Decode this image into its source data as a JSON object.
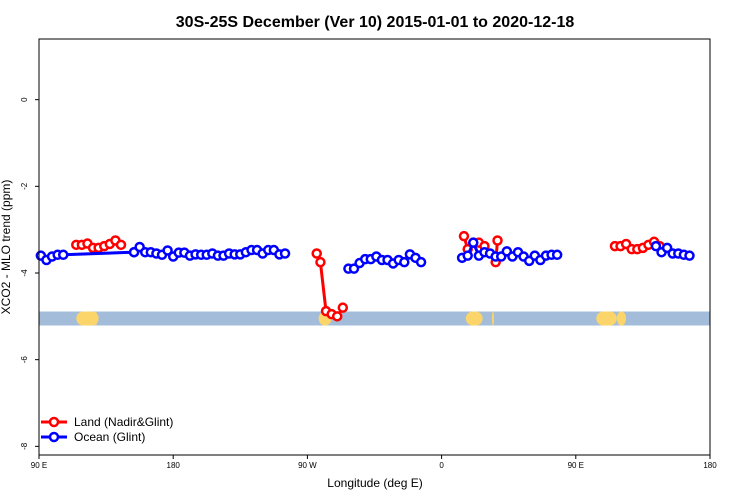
{
  "chart_data": {
    "type": "line",
    "title": "30S-25S December (Ver 10)   2015-01-01 to 2020-12-18",
    "xlabel": "Longitude (deg E)",
    "ylabel": "XCO2 - MLO trend (ppm)",
    "xlim": [
      90,
      450
    ],
    "ylim": [
      -8.2,
      1.4
    ],
    "x_ticks": [
      {
        "value": 90,
        "label": "90 E"
      },
      {
        "value": 162,
        "label": "180"
      },
      {
        "value": 234,
        "label": "90 W"
      },
      {
        "value": 306,
        "label": "0"
      },
      {
        "value": 378,
        "label": "90 E"
      },
      {
        "value": 450,
        "label": "180"
      }
    ],
    "y_ticks": [
      {
        "value": 0,
        "label": "0"
      },
      {
        "value": -2,
        "label": "-2"
      },
      {
        "value": -4,
        "label": "-4"
      },
      {
        "value": -6,
        "label": "-6"
      },
      {
        "value": -8,
        "label": "-8"
      }
    ],
    "land_ocean_bar": {
      "y": -5.05,
      "ocean_color": "#a3bcd9",
      "land_color": "#fcd56a",
      "land_spans": [
        [
          110,
          120
        ],
        [
          120,
          121
        ],
        [
          115,
          122
        ],
        [
          240,
          247
        ],
        [
          319,
          328
        ],
        [
          333,
          334
        ],
        [
          389,
          400
        ],
        [
          400,
          405
        ]
      ]
    },
    "series": [
      {
        "name": "Land (Nadir&Glint)",
        "color": "#ff0000",
        "segments": [
          [
            [
              110,
              -3.35
            ],
            [
              113,
              -3.35
            ],
            [
              116,
              -3.32
            ],
            [
              119,
              -3.42
            ],
            [
              122,
              -3.42
            ],
            [
              125,
              -3.38
            ],
            [
              128,
              -3.33
            ],
            [
              131,
              -3.25
            ],
            [
              134,
              -3.35
            ]
          ],
          [
            [
              239,
              -3.55
            ],
            [
              241,
              -3.75
            ],
            [
              244,
              -4.88
            ],
            [
              247,
              -4.95
            ],
            [
              250,
              -5.0
            ],
            [
              253,
              -4.8
            ]
          ],
          [
            [
              318,
              -3.15
            ],
            [
              320,
              -3.45
            ],
            [
              323,
              -3.3
            ],
            [
              326,
              -3.3
            ],
            [
              329,
              -3.38
            ],
            [
              335,
              -3.75
            ],
            [
              336,
              -3.25
            ]
          ],
          [
            [
              399,
              -3.38
            ],
            [
              402,
              -3.38
            ],
            [
              405,
              -3.33
            ],
            [
              408,
              -3.45
            ],
            [
              411,
              -3.45
            ],
            [
              414,
              -3.42
            ],
            [
              417,
              -3.35
            ],
            [
              420,
              -3.28
            ],
            [
              423,
              -3.38
            ]
          ]
        ]
      },
      {
        "name": "Ocean (Glint)",
        "color": "#0000ff",
        "segments": [
          [
            [
              91,
              -3.6
            ],
            [
              94,
              -3.7
            ],
            [
              97,
              -3.62
            ],
            [
              100,
              -3.58
            ],
            [
              103,
              -3.58
            ],
            [
              141,
              -3.52
            ]
          ],
          [
            [
              141,
              -3.52
            ],
            [
              144,
              -3.4
            ],
            [
              147,
              -3.52
            ],
            [
              150,
              -3.52
            ],
            [
              153,
              -3.55
            ],
            [
              156,
              -3.58
            ],
            [
              159,
              -3.48
            ],
            [
              162,
              -3.62
            ],
            [
              165,
              -3.53
            ],
            [
              168,
              -3.53
            ],
            [
              171,
              -3.6
            ],
            [
              174,
              -3.57
            ],
            [
              177,
              -3.58
            ],
            [
              180,
              -3.58
            ],
            [
              183,
              -3.55
            ],
            [
              186,
              -3.6
            ],
            [
              189,
              -3.6
            ],
            [
              192,
              -3.55
            ],
            [
              195,
              -3.57
            ],
            [
              198,
              -3.57
            ],
            [
              201,
              -3.52
            ],
            [
              204,
              -3.47
            ],
            [
              207,
              -3.47
            ],
            [
              210,
              -3.55
            ],
            [
              213,
              -3.47
            ],
            [
              216,
              -3.47
            ],
            [
              219,
              -3.57
            ],
            [
              222,
              -3.55
            ]
          ],
          [
            [
              256,
              -3.9
            ],
            [
              259,
              -3.9
            ],
            [
              262,
              -3.77
            ],
            [
              265,
              -3.68
            ],
            [
              268,
              -3.68
            ],
            [
              271,
              -3.62
            ],
            [
              274,
              -3.7
            ],
            [
              277,
              -3.7
            ],
            [
              280,
              -3.78
            ],
            [
              283,
              -3.7
            ],
            [
              286,
              -3.75
            ],
            [
              289,
              -3.57
            ],
            [
              292,
              -3.65
            ],
            [
              295,
              -3.75
            ]
          ],
          [
            [
              317,
              -3.65
            ],
            [
              320,
              -3.6
            ],
            [
              323,
              -3.3
            ],
            [
              326,
              -3.6
            ],
            [
              329,
              -3.52
            ],
            [
              332,
              -3.55
            ],
            [
              335,
              -3.62
            ],
            [
              338,
              -3.62
            ],
            [
              341,
              -3.5
            ],
            [
              344,
              -3.62
            ],
            [
              347,
              -3.52
            ],
            [
              350,
              -3.62
            ],
            [
              353,
              -3.72
            ],
            [
              356,
              -3.6
            ],
            [
              359,
              -3.7
            ],
            [
              362,
              -3.6
            ],
            [
              365,
              -3.58
            ],
            [
              368,
              -3.58
            ]
          ],
          [
            [
              421,
              -3.38
            ],
            [
              424,
              -3.52
            ],
            [
              427,
              -3.42
            ],
            [
              430,
              -3.55
            ],
            [
              433,
              -3.55
            ],
            [
              436,
              -3.58
            ],
            [
              439,
              -3.6
            ]
          ]
        ]
      }
    ],
    "legend": {
      "position": "bottom-left",
      "entries": [
        "Land (Nadir&Glint)",
        "Ocean (Glint)"
      ]
    },
    "grid": false
  }
}
